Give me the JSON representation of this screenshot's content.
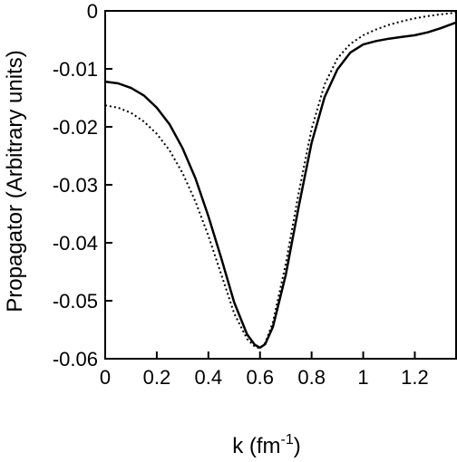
{
  "chart_data": {
    "type": "line",
    "xlabel": "k (fm",
    "xlabel_sup": "-1",
    "xlabel_close": ")",
    "ylabel": "Propagator (Arbitrary units)",
    "xlim": [
      0,
      1.36
    ],
    "ylim": [
      -0.06,
      0
    ],
    "xticks": [
      0,
      0.2,
      0.4,
      0.6,
      0.8,
      1,
      1.2
    ],
    "xtick_labels": [
      "0",
      "0.2",
      "0.4",
      "0.6",
      "0.8",
      "1",
      "1.2"
    ],
    "yticks": [
      0,
      -0.01,
      -0.02,
      -0.03,
      -0.04,
      -0.05,
      -0.06
    ],
    "ytick_labels": [
      "0",
      "-0.01",
      "-0.02",
      "-0.03",
      "-0.04",
      "-0.05",
      "-0.06"
    ],
    "grid": false,
    "series": [
      {
        "style": "solid",
        "x": [
          0,
          0.05,
          0.1,
          0.15,
          0.2,
          0.25,
          0.3,
          0.35,
          0.4,
          0.45,
          0.5,
          0.55,
          0.58,
          0.6,
          0.62,
          0.65,
          0.7,
          0.75,
          0.8,
          0.85,
          0.9,
          0.95,
          1.0,
          1.05,
          1.1,
          1.15,
          1.2,
          1.25,
          1.3,
          1.36
        ],
        "y": [
          -0.0122,
          -0.0125,
          -0.0133,
          -0.0146,
          -0.0167,
          -0.0196,
          -0.0237,
          -0.0289,
          -0.0354,
          -0.0427,
          -0.0503,
          -0.0558,
          -0.0576,
          -0.0581,
          -0.0575,
          -0.0545,
          -0.0455,
          -0.0338,
          -0.0228,
          -0.0149,
          -0.0101,
          -0.0072,
          -0.0058,
          -0.0052,
          -0.0048,
          -0.0045,
          -0.0042,
          -0.0037,
          -0.003,
          -0.002
        ]
      },
      {
        "style": "dotted",
        "x": [
          0,
          0.05,
          0.1,
          0.15,
          0.2,
          0.25,
          0.3,
          0.35,
          0.4,
          0.45,
          0.5,
          0.55,
          0.58,
          0.6,
          0.62,
          0.65,
          0.7,
          0.75,
          0.8,
          0.85,
          0.9,
          0.95,
          1.0,
          1.05,
          1.1,
          1.15,
          1.2,
          1.25,
          1.3,
          1.36
        ],
        "y": [
          -0.0163,
          -0.0167,
          -0.0176,
          -0.0191,
          -0.0212,
          -0.0241,
          -0.028,
          -0.0329,
          -0.0388,
          -0.0455,
          -0.0522,
          -0.0566,
          -0.0579,
          -0.0582,
          -0.0573,
          -0.0537,
          -0.0436,
          -0.0314,
          -0.0204,
          -0.0127,
          -0.0082,
          -0.0057,
          -0.0042,
          -0.0032,
          -0.0024,
          -0.0018,
          -0.0013,
          -0.0009,
          -0.0006,
          -0.0003
        ]
      }
    ]
  }
}
